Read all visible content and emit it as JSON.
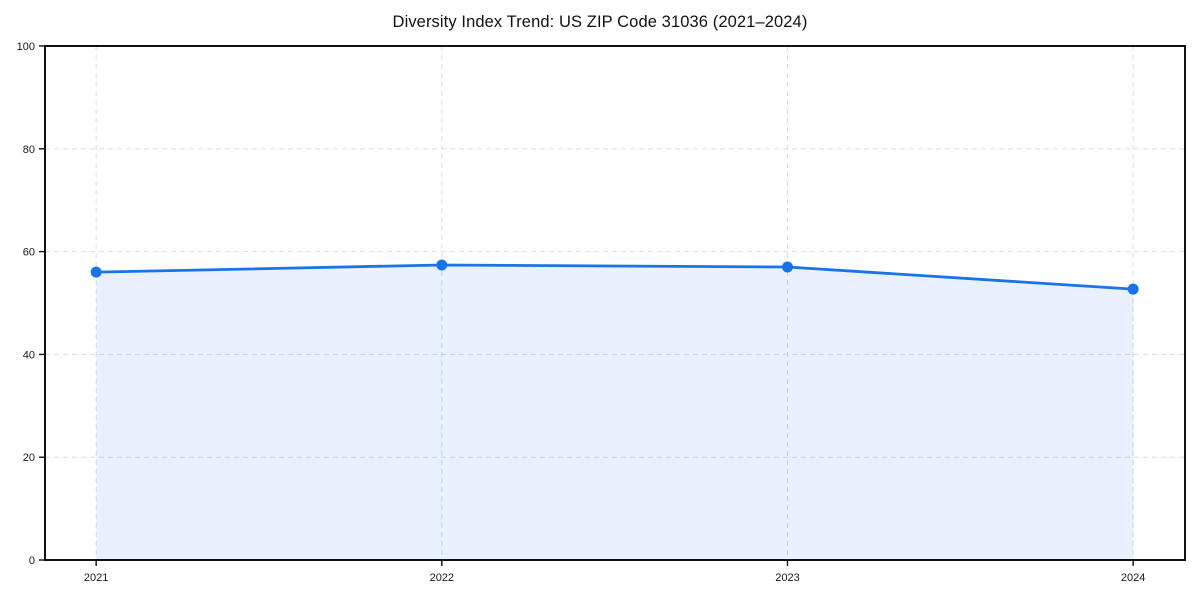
{
  "chart_data": {
    "type": "area",
    "title": "Diversity Index Trend: US ZIP Code 31036 (2021–2024)",
    "categories": [
      "2021",
      "2022",
      "2023",
      "2024"
    ],
    "values": [
      56.0,
      57.4,
      57.0,
      52.7
    ],
    "xlabel": "",
    "ylabel": "",
    "ylim": [
      0,
      100
    ],
    "yticks": [
      0,
      20,
      40,
      60,
      80,
      100
    ],
    "grid": "dashed",
    "legend": "none",
    "colors": {
      "line": "#1a73e8",
      "marker": "#1a73e8",
      "fill": "rgba(26, 115, 232, 0.10)",
      "grid": "#dcdcdc",
      "axis": "#111111",
      "text": "#1a1a1a",
      "background": "#ffffff"
    }
  }
}
